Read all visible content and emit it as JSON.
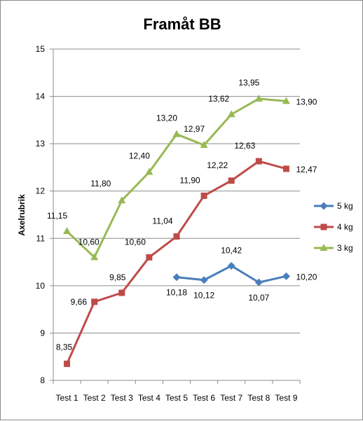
{
  "chart_data": {
    "type": "line",
    "title": "Framåt BB",
    "xlabel": "",
    "ylabel": "Axelrubrik",
    "categories": [
      "Test 1",
      "Test 2",
      "Test 3",
      "Test 4",
      "Test 5",
      "Test 6",
      "Test 7",
      "Test 8",
      "Test 9"
    ],
    "ylim": [
      8,
      15
    ],
    "yticks": [
      "8",
      "9",
      "10",
      "11",
      "12",
      "13",
      "14",
      "15"
    ],
    "grid": true,
    "legend_position": "right",
    "series": [
      {
        "name": "5 kg",
        "color": "#4a7ebb",
        "marker": "diamond",
        "values": [
          null,
          null,
          null,
          null,
          10.18,
          10.12,
          10.42,
          10.07,
          10.2
        ],
        "labels": [
          "",
          "",
          "",
          "",
          "10,18",
          "10,12",
          "10,42",
          "10,07",
          "10,20"
        ]
      },
      {
        "name": "4 kg",
        "color": "#be4b48",
        "marker": "square",
        "values": [
          8.35,
          9.66,
          9.85,
          10.6,
          11.04,
          11.9,
          12.22,
          12.63,
          12.47
        ],
        "labels": [
          "8,35",
          "9,66",
          "9,85",
          "10,60",
          "11,04",
          "11,90",
          "12,22",
          "12,63",
          "12,47"
        ]
      },
      {
        "name": "3 kg",
        "color": "#98b954",
        "marker": "triangle",
        "values": [
          11.15,
          10.6,
          11.8,
          12.4,
          13.2,
          12.97,
          13.62,
          13.95,
          13.9
        ],
        "labels": [
          "11,15",
          "10,60",
          "11,80",
          "12,40",
          "13,20",
          "12,97",
          "13,62",
          "13,95",
          "13,90"
        ]
      }
    ]
  }
}
